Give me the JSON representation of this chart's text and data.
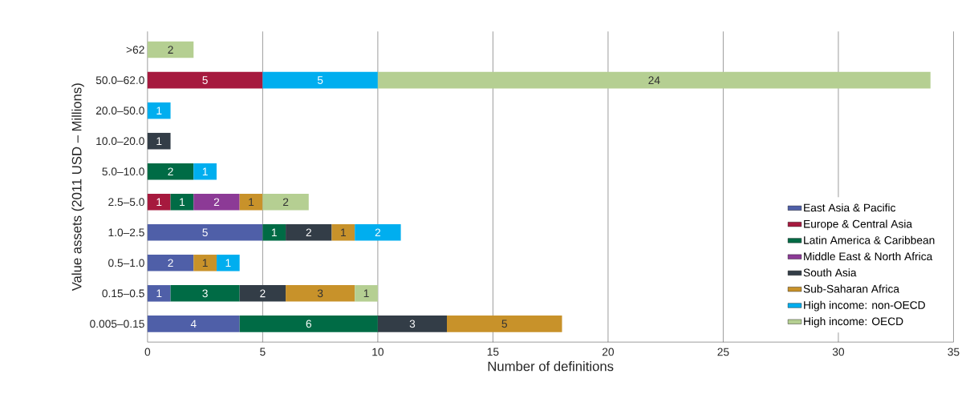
{
  "chart_data": {
    "type": "bar",
    "orientation": "horizontal",
    "stacked": true,
    "categories": [
      ">62",
      "50.0–62.0",
      "20.0–50.0",
      "10.0–20.0",
      "5.0–10.0",
      "2.5–5.0",
      "1.0–2.5",
      "0.5–1.0",
      "0.15–0.5",
      "0.005–0.15"
    ],
    "series": [
      {
        "name": "East Asia & Pacific",
        "color": "#4f5fa8",
        "values": [
          null,
          null,
          null,
          null,
          null,
          null,
          5,
          2,
          1,
          4
        ]
      },
      {
        "name": "Europe & Central Asia",
        "color": "#a6193e",
        "values": [
          null,
          5,
          null,
          null,
          null,
          1,
          null,
          null,
          null,
          null
        ]
      },
      {
        "name": "Latin America & Caribbean",
        "color": "#006b45",
        "values": [
          null,
          null,
          null,
          null,
          2,
          1,
          1,
          null,
          3,
          6
        ]
      },
      {
        "name": "Middle East & North Africa",
        "color": "#8c3a96",
        "values": [
          null,
          null,
          null,
          null,
          null,
          2,
          null,
          null,
          null,
          null
        ]
      },
      {
        "name": "South Asia",
        "color": "#333d47",
        "values": [
          null,
          null,
          null,
          1,
          null,
          null,
          2,
          null,
          2,
          3
        ]
      },
      {
        "name": "Sub-Saharan Africa",
        "color": "#c8922a",
        "values": [
          null,
          null,
          null,
          null,
          null,
          1,
          1,
          1,
          3,
          5
        ]
      },
      {
        "name": "High income: non-OECD",
        "color": "#00aeef",
        "values": [
          null,
          5,
          1,
          null,
          1,
          null,
          2,
          1,
          null,
          null
        ]
      },
      {
        "name": "High income: OECD",
        "color": "#b5cf92",
        "values": [
          2,
          24,
          null,
          null,
          null,
          2,
          null,
          null,
          1,
          null
        ]
      }
    ],
    "xlim": [
      0,
      35
    ],
    "xticks": [
      0,
      5,
      10,
      15,
      20,
      25,
      30,
      35
    ],
    "xlabel": "Number of definitions",
    "ylabel": "Value assets (2011 USD – Millions)",
    "grid": "x",
    "legend": "bottom right",
    "data_labels": true
  }
}
